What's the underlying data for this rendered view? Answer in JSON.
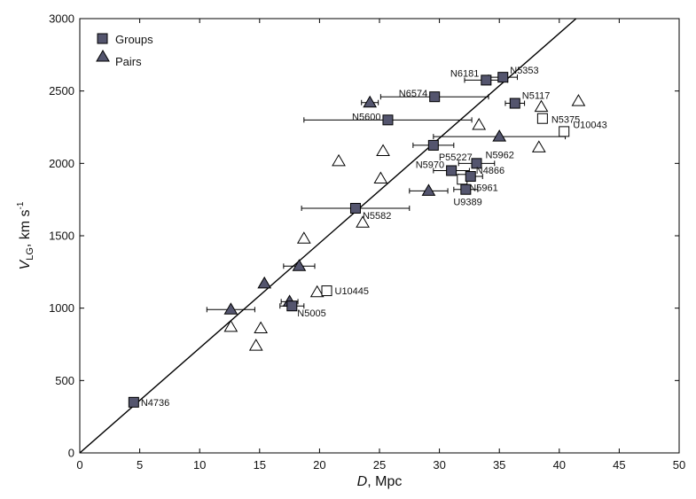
{
  "chart_data": {
    "type": "scatter",
    "xlabel_main": "D",
    "xlabel_unit": ", Mpc",
    "ylabel_main": "V",
    "ylabel_sub": "LG",
    "ylabel_unit": ", km s",
    "ylabel_sup": "-1",
    "xlim": [
      0,
      50
    ],
    "ylim": [
      0,
      3000
    ],
    "xticks": [
      0,
      5,
      10,
      15,
      20,
      25,
      30,
      35,
      40,
      45,
      50
    ],
    "yticks": [
      0,
      500,
      1000,
      1500,
      2000,
      2500,
      3000
    ],
    "legend": {
      "position": "top-left",
      "groups": "Groups",
      "pairs": "Pairs"
    },
    "fit_line": {
      "x": [
        0,
        41.4
      ],
      "y": [
        0,
        3000
      ]
    },
    "colors": {
      "filled": "#54556e",
      "edge": "#000000",
      "line": "#000000"
    },
    "groups_filled": [
      {
        "label": "N4736",
        "x": 4.5,
        "y": 350
      },
      {
        "label": "N5005",
        "x": 17.7,
        "y": 1015,
        "xerr": 1.0
      },
      {
        "label": "N5582",
        "x": 23.0,
        "y": 1690,
        "xerr": 4.5
      },
      {
        "label": "N5600",
        "x": 25.7,
        "y": 2300,
        "xerr": 7.0
      },
      {
        "label": "N6574",
        "x": 29.6,
        "y": 2460,
        "xerr": 4.5
      },
      {
        "label": "P55227",
        "x": 29.5,
        "y": 2125,
        "xerr": 1.7
      },
      {
        "label": "N6181",
        "x": 33.9,
        "y": 2575,
        "xerr": 1.8
      },
      {
        "label": "N5353",
        "x": 35.3,
        "y": 2595,
        "xerr": 1.2
      },
      {
        "label": "N5117",
        "x": 36.3,
        "y": 2415,
        "xerr": 0.8
      },
      {
        "label": "N5962",
        "x": 33.1,
        "y": 2000,
        "xerr": 1.5
      },
      {
        "label": "N5970",
        "x": 31.0,
        "y": 1950,
        "xerr": 1.5
      },
      {
        "label": "N4866",
        "x": 32.6,
        "y": 1910,
        "xerr": 1.0
      },
      {
        "label": "U9389",
        "x": 32.2,
        "y": 1820,
        "xerr": 1.0
      }
    ],
    "groups_open": [
      {
        "label": "N5375",
        "x": 38.6,
        "y": 2310
      },
      {
        "label": "U10043",
        "x": 40.4,
        "y": 2220
      },
      {
        "label": "N5961",
        "x": 31.9,
        "y": 1890
      },
      {
        "label": "U10445",
        "x": 20.6,
        "y": 1120
      }
    ],
    "pairs_filled": [
      {
        "x": 12.6,
        "y": 990,
        "xerr": 2.0
      },
      {
        "x": 15.4,
        "y": 1170
      },
      {
        "x": 17.5,
        "y": 1045,
        "xerr": 0.7
      },
      {
        "x": 18.3,
        "y": 1290,
        "xerr": 1.3
      },
      {
        "x": 24.2,
        "y": 2420,
        "xerr": 0.7
      },
      {
        "x": 29.1,
        "y": 1810,
        "xerr": 1.6
      },
      {
        "x": 35.0,
        "y": 2185,
        "xerr": 5.5
      }
    ],
    "pairs_open": [
      {
        "x": 12.6,
        "y": 870
      },
      {
        "x": 14.7,
        "y": 740
      },
      {
        "x": 15.1,
        "y": 860
      },
      {
        "x": 18.7,
        "y": 1480
      },
      {
        "x": 19.8,
        "y": 1110
      },
      {
        "x": 21.6,
        "y": 2015
      },
      {
        "x": 23.6,
        "y": 1590
      },
      {
        "x": 25.1,
        "y": 1895
      },
      {
        "x": 25.3,
        "y": 2085
      },
      {
        "x": 33.3,
        "y": 2265
      },
      {
        "x": 38.3,
        "y": 2110
      },
      {
        "x": 38.5,
        "y": 2390
      },
      {
        "x": 41.6,
        "y": 2430
      }
    ]
  }
}
